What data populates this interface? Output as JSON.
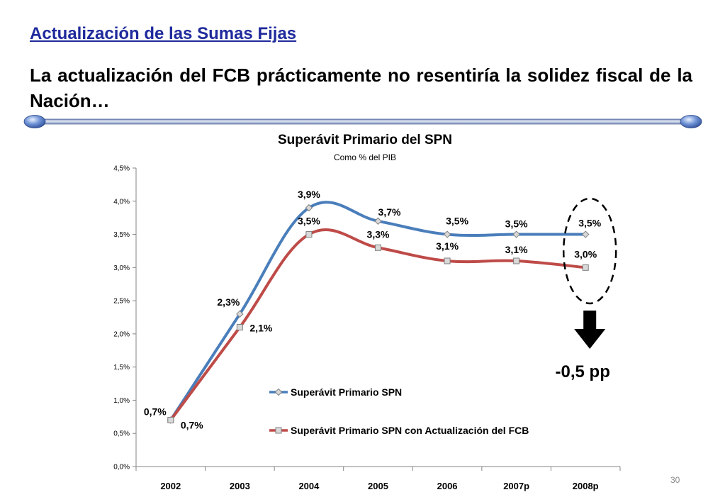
{
  "slide": {
    "heading": "Actualización de las Sumas Fijas",
    "lead": "La actualización del FCB prácticamente no resentiría la solidez fiscal de la Nación…",
    "page_number": "30"
  },
  "chart_data": {
    "type": "line",
    "title": "Superávit Primario del SPN",
    "subtitle": "Como % del PIB",
    "categories": [
      "2002",
      "2003",
      "2004",
      "2005",
      "2006",
      "2007p",
      "2008p"
    ],
    "ylim": [
      0,
      4.5
    ],
    "y_ticks": [
      "0,0%",
      "0,5%",
      "1,0%",
      "1,5%",
      "2,0%",
      "2,5%",
      "3,0%",
      "3,5%",
      "4,0%",
      "4,5%"
    ],
    "grid": false,
    "legend_position": "center-right",
    "series": [
      {
        "name": "Superávit Primario SPN",
        "values": [
          0.7,
          2.3,
          3.9,
          3.7,
          3.5,
          3.5,
          3.5
        ],
        "labels": [
          "0,7%",
          "2,3%",
          "3,9%",
          "3,7%",
          "3,5%",
          "3,5%",
          "3,5%"
        ],
        "color": "#4a7ebb",
        "marker": "diamond"
      },
      {
        "name": "Superávit Primario SPN con Actualización del FCB",
        "values": [
          0.7,
          2.1,
          3.5,
          3.3,
          3.1,
          3.1,
          3.0
        ],
        "labels": [
          "0,7%",
          "2,1%",
          "3,5%",
          "3,3%",
          "3,1%",
          "3,1%",
          "3,0%"
        ],
        "color": "#be4b48",
        "marker": "square"
      }
    ],
    "annotation": {
      "text": "-0,5 pp",
      "target_category": "2008p"
    }
  }
}
